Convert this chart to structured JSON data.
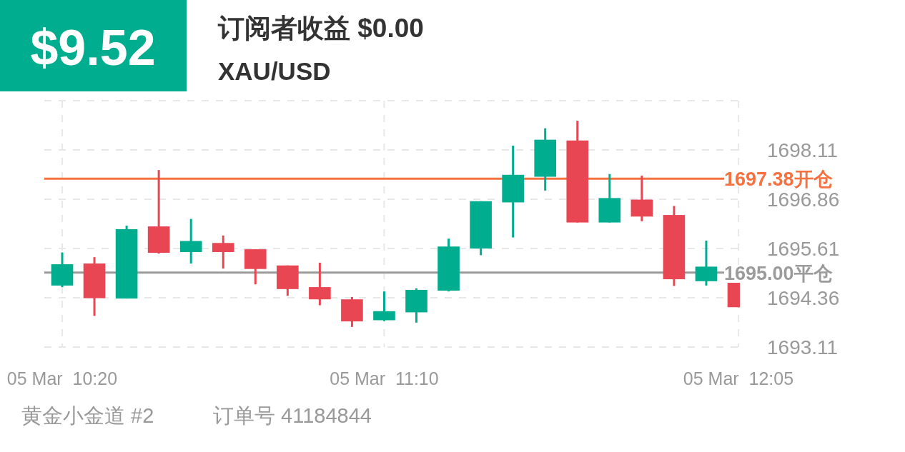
{
  "chart_data": {
    "type": "candlestick",
    "title": "订阅者收益 $0.00",
    "subtitle": "XAU/USD",
    "annotations": [
      "$9.52",
      "黄金小金道 #2",
      "订单号 41184844"
    ],
    "categories": [
      "05 Mar  10:20",
      null,
      null,
      null,
      null,
      null,
      null,
      null,
      null,
      null,
      "05 Mar  11:10",
      null,
      null,
      null,
      null,
      null,
      null,
      null,
      null,
      null,
      null,
      "05 Mar  12:05"
    ],
    "ohlc": [
      [
        1694.67,
        1695.51,
        1694.63,
        1695.21
      ],
      [
        1695.23,
        1695.39,
        1693.9,
        1694.35
      ],
      [
        1694.34,
        1696.19,
        1694.34,
        1696.1
      ],
      [
        1696.17,
        1697.6,
        1695.48,
        1695.5
      ],
      [
        1695.52,
        1696.36,
        1695.23,
        1695.8
      ],
      [
        1695.75,
        1695.94,
        1695.1,
        1695.52
      ],
      [
        1695.59,
        1695.59,
        1694.7,
        1695.09
      ],
      [
        1695.18,
        1695.18,
        1694.41,
        1694.58
      ],
      [
        1694.63,
        1695.25,
        1694.17,
        1694.32
      ],
      [
        1694.32,
        1694.38,
        1693.62,
        1693.76
      ],
      [
        1693.79,
        1694.52,
        1693.77,
        1694.02
      ],
      [
        1693.99,
        1694.6,
        1693.73,
        1694.56
      ],
      [
        1694.54,
        1695.86,
        1694.52,
        1695.66
      ],
      [
        1695.61,
        1696.81,
        1695.44,
        1696.81
      ],
      [
        1696.78,
        1698.22,
        1695.89,
        1697.48
      ],
      [
        1697.43,
        1698.66,
        1697.08,
        1698.37
      ],
      [
        1698.35,
        1698.85,
        1696.27,
        1696.27
      ],
      [
        1696.27,
        1697.5,
        1696.27,
        1696.89
      ],
      [
        1696.85,
        1697.46,
        1696.3,
        1696.42
      ],
      [
        1696.46,
        1696.69,
        1694.66,
        1694.83
      ],
      [
        1694.78,
        1695.81,
        1694.67,
        1695.15
      ],
      [
        1694.74,
        1694.74,
        1694.12,
        1694.12
      ]
    ],
    "colors": [
      "#00ad8e",
      "#e84653",
      "#00ad8e",
      "#e84653",
      "#00ad8e",
      "#e84653",
      "#e84653",
      "#e84653",
      "#e84653",
      "#e84653",
      "#00ad8e",
      "#00ad8e",
      "#00ad8e",
      "#00ad8e",
      "#00ad8e",
      "#00ad8e",
      "#e84653",
      "#00ad8e",
      "#e84653",
      "#e84653",
      "#00ad8e",
      "#e84653"
    ],
    "ylim": [
      1693.11,
      1699.36
    ],
    "yticks": [
      1693.11,
      1694.36,
      1695.61,
      1696.86,
      1698.11,
      {
        "value": 1699.36,
        "label": null
      }
    ],
    "ref_lines": [
      {
        "axis": "y",
        "value": 1697.38,
        "label": "1697.38开仓",
        "color": "#f5713f"
      },
      {
        "axis": "y",
        "value": 1695.0,
        "label": "1695.00平仓",
        "color": "#9b9b9b"
      }
    ],
    "grid": true
  }
}
